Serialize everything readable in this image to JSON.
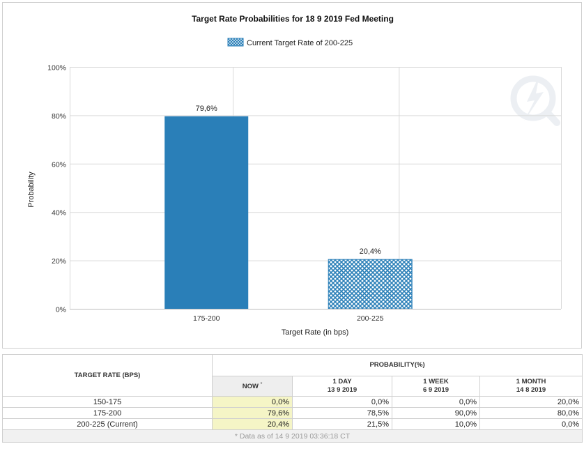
{
  "chart_data": {
    "type": "bar",
    "title": "Target Rate Probabilities for 18 9 2019 Fed Meeting",
    "legend": {
      "label": "Current Target Rate of 200-225",
      "position": "top-center"
    },
    "xlabel": "Target Rate (in bps)",
    "ylabel": "Probability",
    "categories": [
      "175-200",
      "200-225"
    ],
    "values": [
      79.6,
      20.4
    ],
    "value_labels": [
      "79,6%",
      "20,4%"
    ],
    "current_category": "200-225",
    "ylim": [
      0,
      100
    ],
    "yticks": [
      0,
      20,
      40,
      60,
      80,
      100
    ],
    "ytick_labels": [
      "0%",
      "20%",
      "40%",
      "60%",
      "80%",
      "100%"
    ],
    "grid": true,
    "colors": {
      "bar": "#2a7fb8",
      "current_hatch": "#2a7fb8",
      "grid": "#d9d9d9"
    }
  },
  "table": {
    "target_rate_header": "TARGET RATE (BPS)",
    "probability_header": "PROBABILITY(%)",
    "now_label": "NOW",
    "now_marker": "*",
    "columns": [
      {
        "label": "1 DAY",
        "date": "13 9 2019"
      },
      {
        "label": "1 WEEK",
        "date": "6 9 2019"
      },
      {
        "label": "1 MONTH",
        "date": "14 8 2019"
      }
    ],
    "rows": [
      {
        "rate": "150-175",
        "now": "0,0%",
        "values": [
          "0,0%",
          "0,0%",
          "20,0%"
        ]
      },
      {
        "rate": "175-200",
        "now": "79,6%",
        "values": [
          "78,5%",
          "90,0%",
          "80,0%"
        ]
      },
      {
        "rate": "200-225 (Current)",
        "now": "20,4%",
        "values": [
          "21,5%",
          "10,0%",
          "0,0%"
        ]
      }
    ],
    "footnote": "* Data as of 14 9 2019 03:36:18 CT"
  }
}
